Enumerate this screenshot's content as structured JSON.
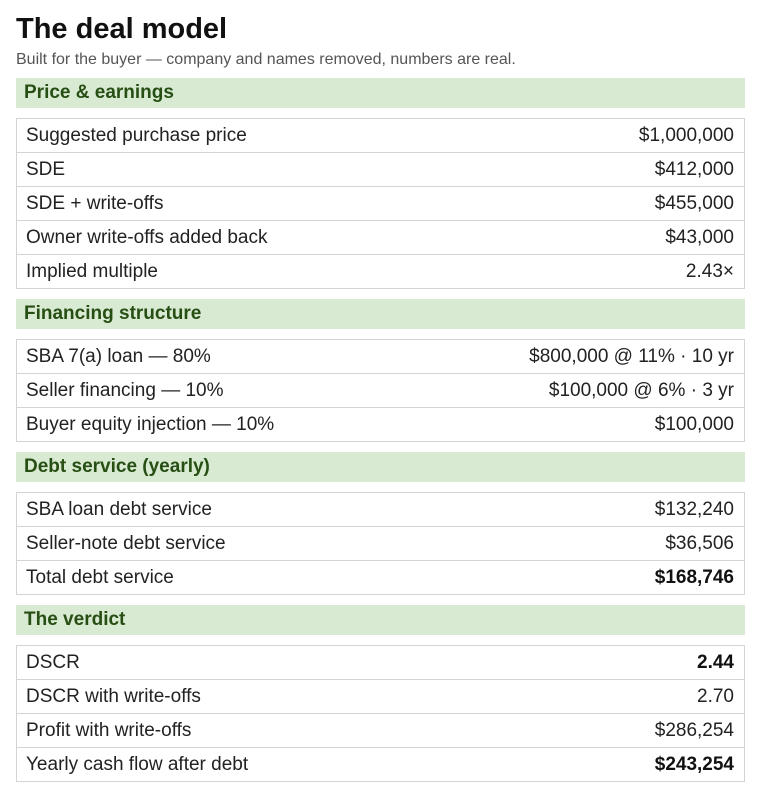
{
  "header": {
    "title": "The deal model",
    "subtitle": "Built for the buyer — company and names removed, numbers are real."
  },
  "sections": [
    {
      "title": "Price & earnings",
      "rows": [
        {
          "label": "Suggested purchase price",
          "value": "$1,000,000",
          "bold": false
        },
        {
          "label": "SDE",
          "value": "$412,000",
          "bold": false
        },
        {
          "label": "SDE + write-offs",
          "value": "$455,000",
          "bold": false
        },
        {
          "label": "Owner write-offs added back",
          "value": "$43,000",
          "bold": false
        },
        {
          "label": "Implied multiple",
          "value": "2.43×",
          "bold": false
        }
      ]
    },
    {
      "title": "Financing structure",
      "rows": [
        {
          "label": "SBA 7(a) loan — 80%",
          "value": "$800,000 @ 11% · 10 yr",
          "bold": false
        },
        {
          "label": "Seller financing — 10%",
          "value": "$100,000 @ 6% · 3 yr",
          "bold": false
        },
        {
          "label": "Buyer equity injection — 10%",
          "value": "$100,000",
          "bold": false
        }
      ]
    },
    {
      "title": "Debt service (yearly)",
      "rows": [
        {
          "label": "SBA loan debt service",
          "value": "$132,240",
          "bold": false
        },
        {
          "label": "Seller-note debt service",
          "value": "$36,506",
          "bold": false
        },
        {
          "label": "Total debt service",
          "value": "$168,746",
          "bold": true
        }
      ]
    },
    {
      "title": "The verdict",
      "rows": [
        {
          "label": "DSCR",
          "value": "2.44",
          "bold": true
        },
        {
          "label": "DSCR with write-offs",
          "value": "2.70",
          "bold": false
        },
        {
          "label": "Profit with write-offs",
          "value": "$286,254",
          "bold": false
        },
        {
          "label": "Yearly cash flow after debt",
          "value": "$243,254",
          "bold": true
        }
      ]
    }
  ]
}
